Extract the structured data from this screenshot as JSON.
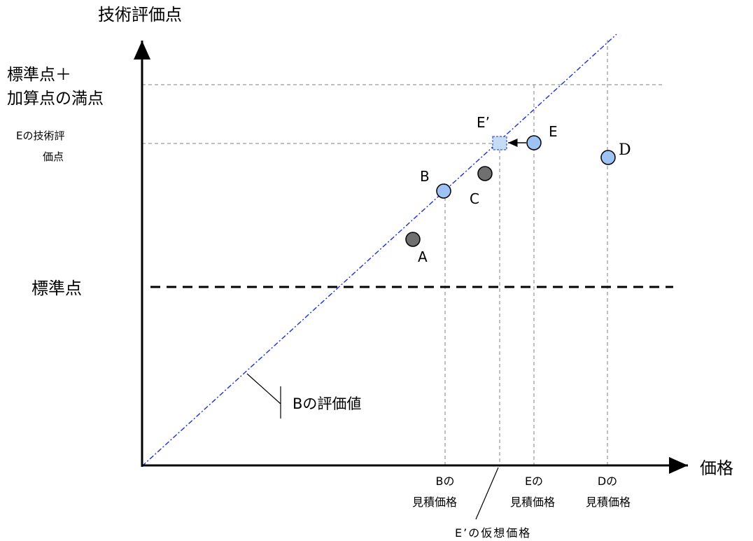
{
  "axes": {
    "y_title": "技術評価点",
    "x_title": "価格"
  },
  "y_labels": {
    "max_line1": "標準点＋",
    "max_line2": "加算点の満点",
    "e_score_line1": "Eの技術評",
    "e_score_line2": "価点",
    "standard": "標準点"
  },
  "points": {
    "A": "A",
    "B": "B",
    "C": "C",
    "D": "D",
    "E": "E",
    "E_prime": "E’"
  },
  "annotations": {
    "b_evaluation": "Bの評価値",
    "b_price_line1": "Bの",
    "b_price_line2": "見積価格",
    "e_price_line1": "Eの",
    "e_price_line2": "見積価格",
    "d_price_line1": "Dの",
    "d_price_line2": "見積価格",
    "e_prime_price": "E’の仮想価格"
  },
  "colors": {
    "blue_point": "#9dc3f5",
    "gray_point": "#707070",
    "evaluation_line": "#1a2fd8",
    "e_prime_square": "#c5dcf5"
  }
}
